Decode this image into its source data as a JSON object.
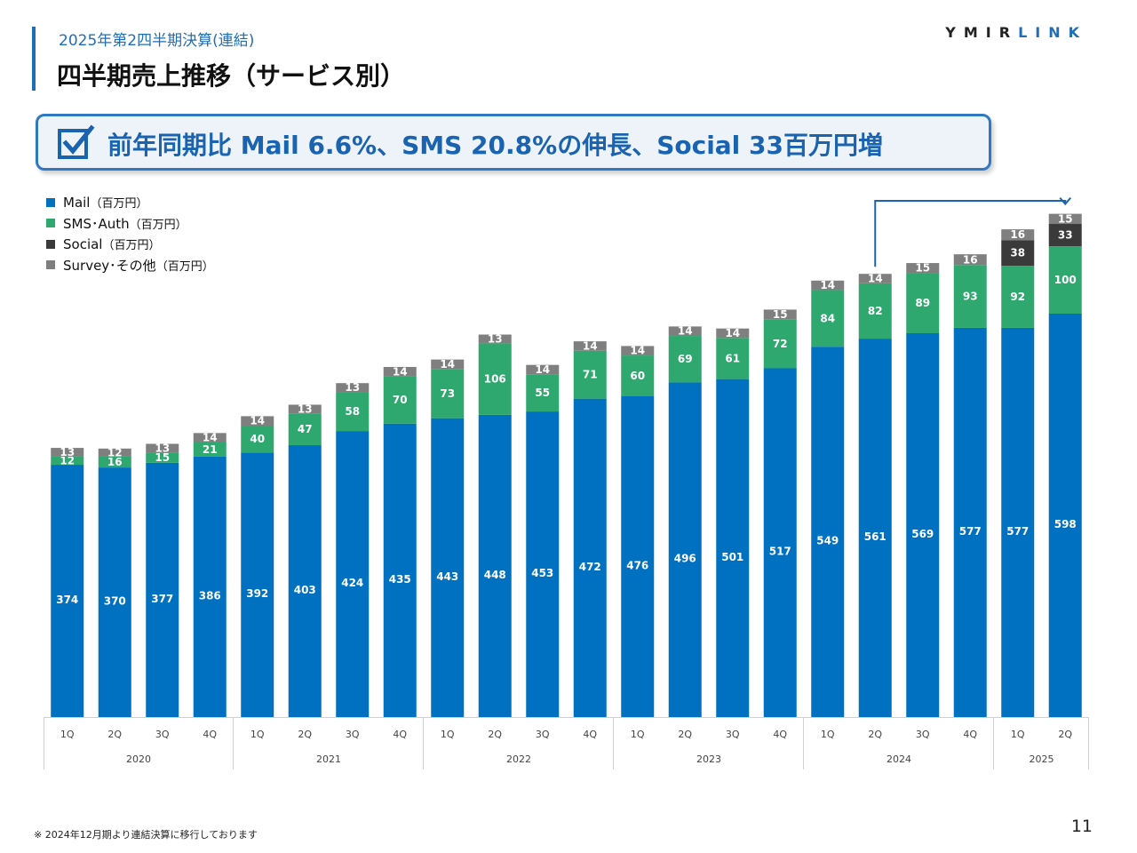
{
  "header": {
    "subtitle": "2025年第2四半期決算(連結)",
    "title": "四半期売上推移（サービス別）",
    "logo_part1": "YMIR",
    "logo_part2": "LINK"
  },
  "banner": {
    "text": "前年同期比 Mail 6.6%、SMS 20.8%の伸長、Social 33百万円増",
    "icon": "checkbox-checked-icon"
  },
  "legend": [
    {
      "label": "Mail",
      "unit": "（百万円）",
      "color": "#0070c0"
    },
    {
      "label": "SMS･Auth",
      "unit": "（百万円）",
      "color": "#2ea86f"
    },
    {
      "label": "Social",
      "unit": "（百万円）",
      "color": "#3a3a3a"
    },
    {
      "label": "Survey･その他",
      "unit": "（百万円）",
      "color": "#7f7f7f"
    }
  ],
  "chart_data": {
    "type": "bar",
    "stacked": true,
    "categories": [
      "1Q",
      "2Q",
      "3Q",
      "4Q",
      "1Q",
      "2Q",
      "3Q",
      "4Q",
      "1Q",
      "2Q",
      "3Q",
      "4Q",
      "1Q",
      "2Q",
      "3Q",
      "4Q",
      "1Q",
      "2Q",
      "3Q",
      "4Q",
      "1Q",
      "2Q"
    ],
    "groups": [
      {
        "label": "2020",
        "count": 4
      },
      {
        "label": "2021",
        "count": 4
      },
      {
        "label": "2022",
        "count": 4
      },
      {
        "label": "2023",
        "count": 4
      },
      {
        "label": "2024",
        "count": 4
      },
      {
        "label": "2025",
        "count": 2
      }
    ],
    "series": [
      {
        "name": "Mail（百万円）",
        "color": "#0070c0",
        "label_color": "#ffffff",
        "values": [
          374,
          370,
          377,
          386,
          392,
          403,
          424,
          435,
          443,
          448,
          453,
          472,
          476,
          496,
          501,
          517,
          549,
          561,
          569,
          577,
          577,
          598
        ]
      },
      {
        "name": "SMS･Auth（百万円）",
        "color": "#2ea86f",
        "label_color": "#ffffff",
        "values": [
          12,
          16,
          15,
          21,
          40,
          47,
          58,
          70,
          73,
          106,
          55,
          71,
          60,
          69,
          61,
          72,
          84,
          82,
          89,
          93,
          92,
          100
        ]
      },
      {
        "name": "Social（百万円）",
        "color": "#3a3a3a",
        "label_color": "#ffffff",
        "values": [
          0,
          0,
          0,
          0,
          0,
          0,
          0,
          0,
          0,
          0,
          0,
          0,
          0,
          0,
          0,
          0,
          0,
          0,
          0,
          0,
          38,
          33
        ]
      },
      {
        "name": "Survey･その他（百万円）",
        "color": "#7f7f7f",
        "label_color": "#ffffff",
        "values": [
          13,
          12,
          13,
          14,
          14,
          13,
          13,
          14,
          14,
          13,
          14,
          14,
          14,
          14,
          14,
          15,
          14,
          14,
          15,
          16,
          16,
          15
        ]
      }
    ],
    "ylim": [
      0,
      760
    ],
    "grid": false,
    "legend_position": "top-left",
    "annotation": "arrow from 2024 2Q to 2025 2Q"
  },
  "footnote": "※ 2024年12月期より連結決算に移行しております",
  "page_number": "11"
}
